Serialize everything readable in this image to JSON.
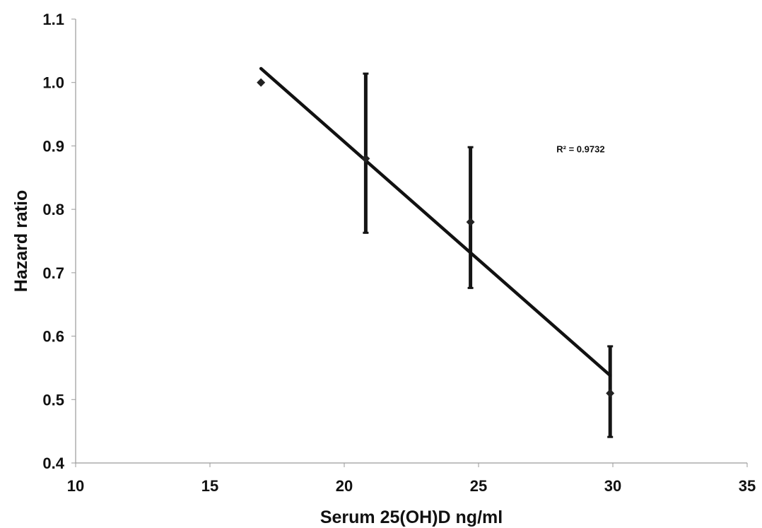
{
  "chart_data": {
    "type": "scatter",
    "xlabel": "Serum 25(OH)D ng/ml",
    "ylabel": "Hazard ratio",
    "xlim": [
      10,
      35
    ],
    "ylim": [
      0.4,
      1.1
    ],
    "x_ticks": [
      "10",
      "15",
      "20",
      "25",
      "30",
      "35"
    ],
    "y_ticks": [
      "0.4",
      "0.5",
      "0.6",
      "0.7",
      "0.8",
      "0.9",
      "1.0",
      "1.1"
    ],
    "grid": false,
    "series": [
      {
        "x": [
          16.9,
          20.8,
          24.7,
          29.9
        ],
        "y": [
          1.0,
          0.88,
          0.78,
          0.51
        ],
        "error_lower": [
          null,
          0.763,
          0.676,
          0.441
        ],
        "error_upper": [
          null,
          1.014,
          0.898,
          0.584
        ],
        "marker": "diamond",
        "color": "#222222"
      }
    ],
    "trendline": {
      "type": "linear",
      "x": [
        16.9,
        29.9
      ],
      "y": [
        1.022,
        0.538
      ],
      "color": "#111111"
    },
    "annotations": [
      {
        "text": "R² = 0.9732",
        "x": 28.8,
        "y": 0.89
      }
    ]
  }
}
